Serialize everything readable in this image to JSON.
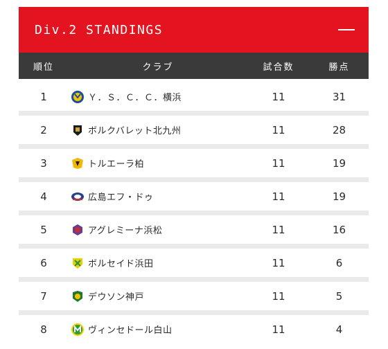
{
  "header": {
    "title": "Div.2 STANDINGS"
  },
  "columns": {
    "rank": "順位",
    "club": "クラブ",
    "games": "試合数",
    "points": "勝点"
  },
  "rows": [
    {
      "rank": "1",
      "club": "Ｙ．Ｓ．Ｃ．Ｃ．横浜",
      "games": "11",
      "points": "31",
      "logo_icon": "yscc-yokohama-logo-icon",
      "logo_colors": [
        "#1a4fa0",
        "#f5c400"
      ]
    },
    {
      "rank": "2",
      "club": "ボルクバレット北九州",
      "games": "11",
      "points": "28",
      "logo_icon": "bolclbaretta-kitakyushu-logo-icon",
      "logo_colors": [
        "#1c1c1c",
        "#c9a43a"
      ]
    },
    {
      "rank": "3",
      "club": "トルエーラ柏",
      "games": "11",
      "points": "19",
      "logo_icon": "tolueira-kashiwa-logo-icon",
      "logo_colors": [
        "#f2b700",
        "#1c1c1c"
      ]
    },
    {
      "rank": "4",
      "club": "広島エフ・ドゥ",
      "games": "11",
      "points": "19",
      "logo_icon": "hiroshima-f-do-logo-icon",
      "logo_colors": [
        "#2a3f8f",
        "#d62a2a"
      ]
    },
    {
      "rank": "5",
      "club": "アグレミーナ浜松",
      "games": "11",
      "points": "16",
      "logo_icon": "agleymina-hamamatsu-logo-icon",
      "logo_colors": [
        "#6b3d8f",
        "#d62a2a"
      ]
    },
    {
      "rank": "6",
      "club": "ボルセイド浜田",
      "games": "11",
      "points": "6",
      "logo_icon": "borseid-hamada-logo-icon",
      "logo_colors": [
        "#2f8f3a",
        "#e6d200"
      ]
    },
    {
      "rank": "7",
      "club": "デウソン神戸",
      "games": "11",
      "points": "5",
      "logo_icon": "deuson-kobe-logo-icon",
      "logo_colors": [
        "#1f7a2e",
        "#f2c400"
      ]
    },
    {
      "rank": "8",
      "club": "ヴィンセドール白山",
      "games": "11",
      "points": "4",
      "logo_icon": "vincedor-hakusan-logo-icon",
      "logo_colors": [
        "#2f9a3a",
        "#f2d200"
      ]
    }
  ],
  "colors": {
    "header_bg": "#e3131f",
    "column_header_bg": "#3a3a3a",
    "row_separator": "#eaeaea",
    "text": "#2a2a2a"
  }
}
